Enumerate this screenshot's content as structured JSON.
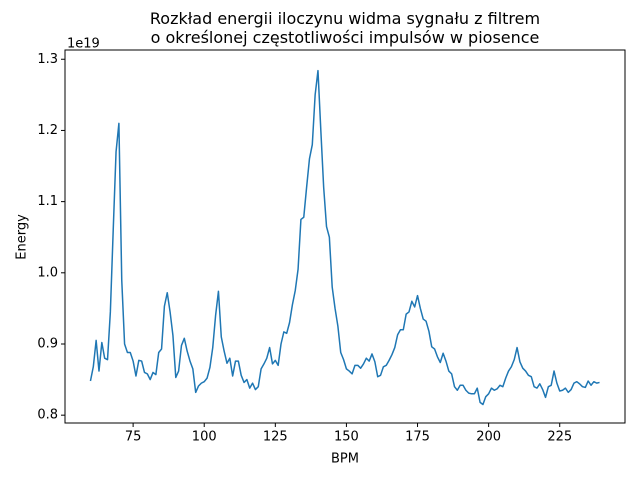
{
  "chart_data": {
    "type": "line",
    "title": "Rozkład energii iloczynu widma sygnału z filtrem\n o określonej częstotliwości impulsów w piosence",
    "xlabel": "BPM",
    "ylabel": "Energy",
    "y_offset_label": "1e19",
    "color": "#1f77b4",
    "x": [
      60,
      61,
      62,
      63,
      64,
      65,
      66,
      67,
      68,
      69,
      70,
      71,
      72,
      73,
      74,
      75,
      76,
      77,
      78,
      79,
      80,
      81,
      82,
      83,
      84,
      85,
      86,
      87,
      88,
      89,
      90,
      91,
      92,
      93,
      94,
      95,
      96,
      97,
      98,
      99,
      100,
      101,
      102,
      103,
      104,
      105,
      106,
      107,
      108,
      109,
      110,
      111,
      112,
      113,
      114,
      115,
      116,
      117,
      118,
      119,
      120,
      121,
      122,
      123,
      124,
      125,
      126,
      127,
      128,
      129,
      130,
      131,
      132,
      133,
      134,
      135,
      136,
      137,
      138,
      139,
      140,
      141,
      142,
      143,
      144,
      145,
      146,
      147,
      148,
      149,
      150,
      151,
      152,
      153,
      154,
      155,
      156,
      157,
      158,
      159,
      160,
      161,
      162,
      163,
      164,
      165,
      166,
      167,
      168,
      169,
      170,
      171,
      172,
      173,
      174,
      175,
      176,
      177,
      178,
      179,
      180,
      181,
      182,
      183,
      184,
      185,
      186,
      187,
      188,
      189,
      190,
      191,
      192,
      193,
      194,
      195,
      196,
      197,
      198,
      199,
      200,
      201,
      202,
      203,
      204,
      205,
      206,
      207,
      208,
      209,
      210,
      211,
      212,
      213,
      214,
      215,
      216,
      217,
      218,
      219,
      220,
      221,
      222,
      223,
      224,
      225,
      226,
      227,
      228,
      229,
      230,
      231,
      232,
      233,
      234,
      235,
      236,
      237,
      238,
      239
    ],
    "values": [
      0.848,
      0.868,
      0.905,
      0.862,
      0.902,
      0.88,
      0.878,
      0.945,
      1.06,
      1.17,
      1.21,
      0.99,
      0.9,
      0.888,
      0.888,
      0.876,
      0.855,
      0.877,
      0.876,
      0.86,
      0.858,
      0.85,
      0.86,
      0.857,
      0.888,
      0.893,
      0.953,
      0.972,
      0.945,
      0.912,
      0.853,
      0.862,
      0.898,
      0.908,
      0.89,
      0.876,
      0.865,
      0.832,
      0.841,
      0.845,
      0.847,
      0.852,
      0.867,
      0.895,
      0.94,
      0.974,
      0.91,
      0.89,
      0.873,
      0.88,
      0.855,
      0.876,
      0.876,
      0.856,
      0.846,
      0.85,
      0.838,
      0.845,
      0.836,
      0.84,
      0.865,
      0.872,
      0.88,
      0.895,
      0.872,
      0.877,
      0.87,
      0.9,
      0.917,
      0.915,
      0.93,
      0.955,
      0.975,
      1.005,
      1.075,
      1.078,
      1.12,
      1.16,
      1.18,
      1.25,
      1.284,
      1.2,
      1.12,
      1.065,
      1.05,
      0.98,
      0.95,
      0.925,
      0.888,
      0.878,
      0.865,
      0.862,
      0.858,
      0.87,
      0.87,
      0.866,
      0.872,
      0.88,
      0.876,
      0.886,
      0.875,
      0.854,
      0.856,
      0.868,
      0.87,
      0.877,
      0.885,
      0.895,
      0.913,
      0.92,
      0.92,
      0.942,
      0.945,
      0.96,
      0.952,
      0.968,
      0.95,
      0.935,
      0.932,
      0.918,
      0.896,
      0.893,
      0.882,
      0.874,
      0.887,
      0.876,
      0.862,
      0.858,
      0.84,
      0.835,
      0.842,
      0.842,
      0.835,
      0.831,
      0.83,
      0.83,
      0.838,
      0.818,
      0.815,
      0.826,
      0.83,
      0.838,
      0.835,
      0.837,
      0.842,
      0.84,
      0.852,
      0.862,
      0.868,
      0.878,
      0.895,
      0.875,
      0.866,
      0.862,
      0.856,
      0.854,
      0.84,
      0.838,
      0.844,
      0.836,
      0.825,
      0.84,
      0.842,
      0.862,
      0.845,
      0.834,
      0.835,
      0.838,
      0.832,
      0.836,
      0.845,
      0.847,
      0.844,
      0.84,
      0.839,
      0.848,
      0.842,
      0.847,
      0.845,
      0.846
    ],
    "xlim": [
      51.05,
      247.95
    ],
    "ylim": [
      0.789,
      1.313
    ],
    "xticks": [
      75,
      100,
      125,
      150,
      175,
      200,
      225
    ],
    "yticks": [
      0.8,
      0.9,
      {
        "value": 1.0,
        "label": "1.0"
      },
      1.1,
      1.2,
      1.3
    ]
  }
}
